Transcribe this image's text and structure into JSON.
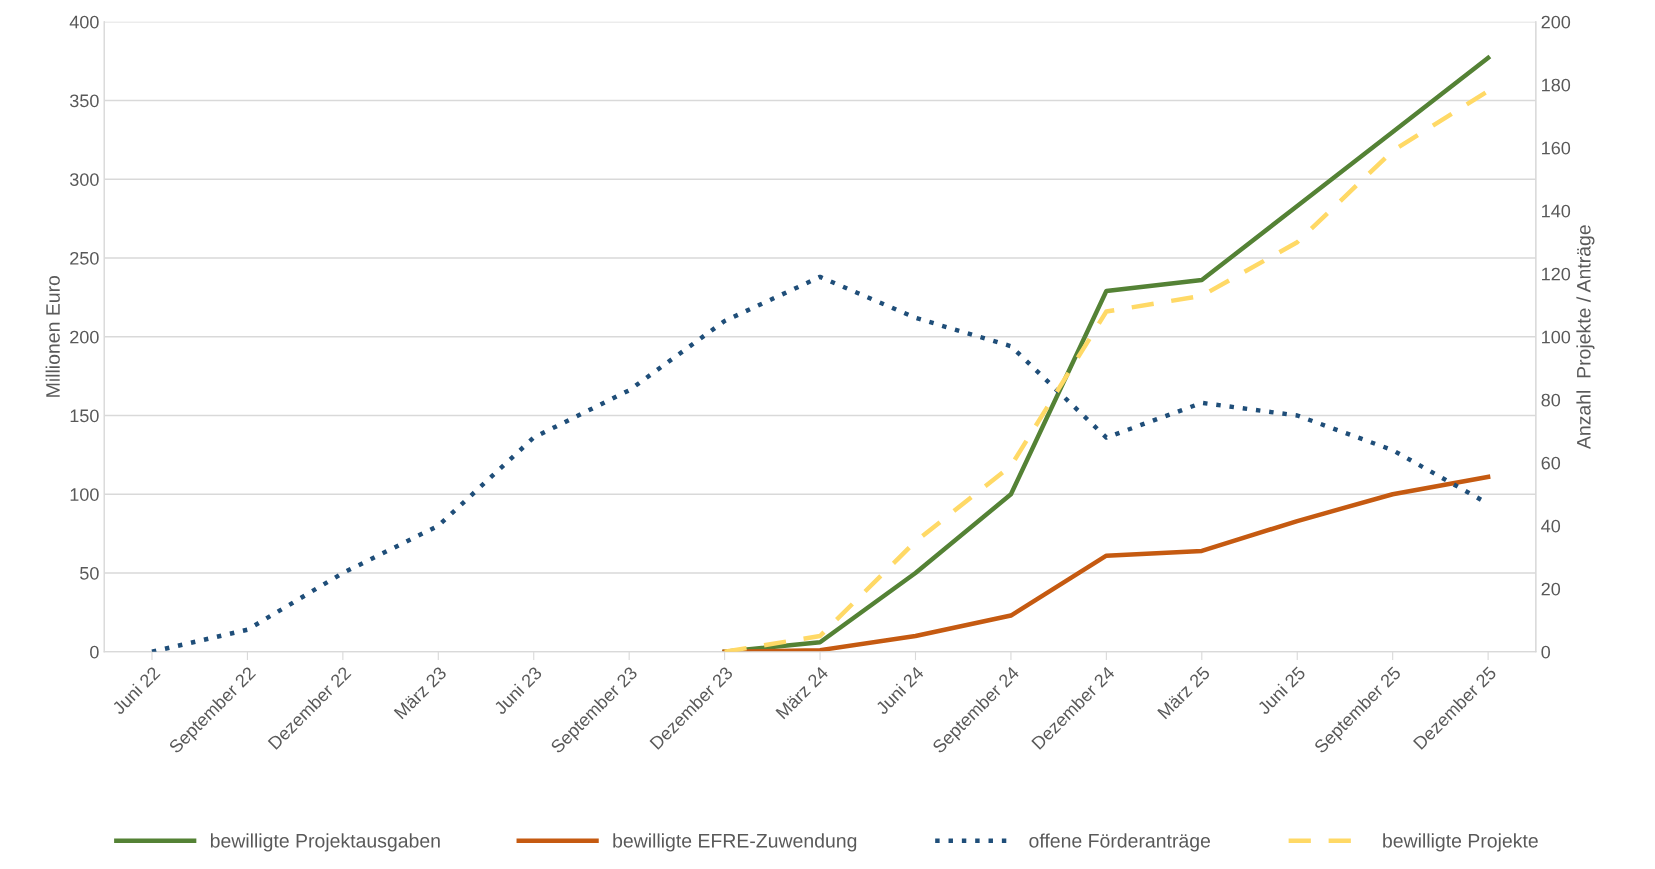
{
  "chart_data": {
    "type": "line",
    "categories": [
      "Juni 22",
      "September 22",
      "Dezember 22",
      "März 23",
      "Juni 23",
      "September 23",
      "Dezember 23",
      "März 24",
      "Juni 24",
      "September 24",
      "Dezember 24",
      "März 25",
      "Juni 25",
      "September 25",
      "Dezember 25"
    ],
    "ylabel": "Millionen Euro",
    "y2label": "Anzahl  Projekte / Anträge",
    "ylim": [
      0,
      400
    ],
    "yticks": [
      0,
      50,
      100,
      150,
      200,
      250,
      300,
      350,
      400
    ],
    "y2lim": [
      0,
      200
    ],
    "y2ticks": [
      0,
      20,
      40,
      60,
      80,
      100,
      120,
      140,
      160,
      180,
      200
    ],
    "grid": "y",
    "legend": "bottom",
    "series": [
      {
        "name": "bewilligte Projektausgaben",
        "color": "#548235",
        "line_style": "solid",
        "values": [
          null,
          null,
          null,
          null,
          null,
          null,
          0,
          6,
          50,
          100,
          229,
          236,
          283,
          330,
          377
        ]
      },
      {
        "name": "bewilligte EFRE-Zuwendung",
        "color": "#c55a11",
        "line_style": "solid",
        "values": [
          null,
          null,
          null,
          null,
          null,
          null,
          0,
          1,
          10,
          23,
          61,
          64,
          83,
          100,
          111
        ]
      },
      {
        "name": "offene Förderanträge",
        "color": "#1f4e79",
        "line_style": "dotted",
        "axis": "y2",
        "values": [
          0,
          7,
          25,
          40,
          68,
          83,
          105,
          119,
          106,
          97,
          68,
          79,
          75,
          64,
          47
        ]
      },
      {
        "name": "bewilligte Projekte",
        "color": "#ffd966",
        "line_style": "dashed",
        "axis": "y2",
        "values": [
          null,
          null,
          null,
          null,
          null,
          null,
          0,
          5,
          35,
          59,
          108,
          113,
          130,
          159,
          178
        ]
      }
    ]
  }
}
